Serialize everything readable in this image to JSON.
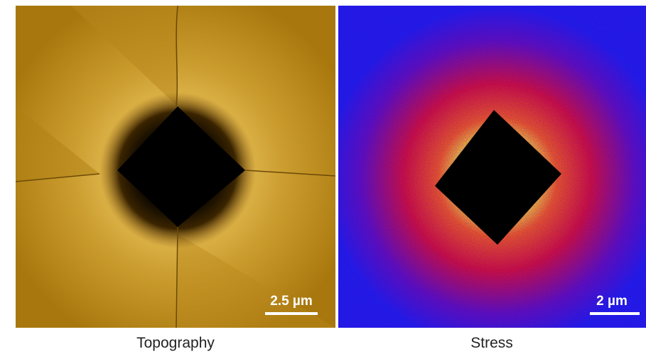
{
  "panels": [
    {
      "caption": "Topography",
      "scale_bar": "2.5 µm"
    },
    {
      "caption": "Stress",
      "scale_bar": "2 µm"
    }
  ]
}
